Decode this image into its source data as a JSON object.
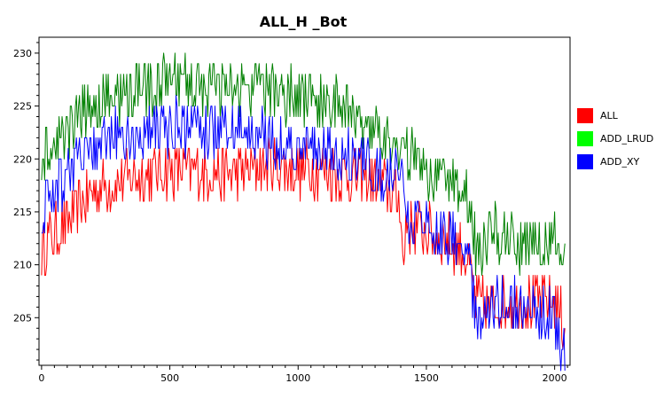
{
  "chart_data": {
    "type": "line",
    "title": "ALL_H _Bot",
    "xlabel": "",
    "ylabel": "",
    "xlim": [
      -10,
      2060
    ],
    "ylim": [
      200.5,
      231.5
    ],
    "xticks": [
      0,
      500,
      1000,
      1500,
      2000
    ],
    "yticks": [
      205,
      210,
      215,
      220,
      225,
      230
    ],
    "grid": false,
    "legend_position": "right",
    "series": [
      {
        "name": "ALL",
        "color": "#ff0000",
        "x": [
          0,
          100,
          200,
          300,
          400,
          500,
          600,
          700,
          800,
          900,
          1000,
          1100,
          1200,
          1300,
          1400,
          1410,
          1420,
          1500,
          1600,
          1650,
          1700,
          1750,
          1800,
          1900,
          2000,
          2040
        ],
        "y": [
          211.5,
          214,
          217,
          218,
          218.5,
          219,
          219,
          218.5,
          219,
          219.5,
          219,
          219,
          218.5,
          218,
          216,
          208.5,
          214,
          213,
          212,
          211,
          206,
          206,
          206.5,
          206.5,
          206.5,
          204
        ]
      },
      {
        "name": "ADD_LRUD",
        "color": "#008000",
        "x": [
          0,
          100,
          200,
          300,
          400,
          500,
          600,
          700,
          800,
          900,
          1000,
          1100,
          1200,
          1300,
          1400,
          1500,
          1600,
          1650,
          1700,
          1750,
          1800,
          1900,
          2000,
          2040
        ],
        "y": [
          219.5,
          222.5,
          225,
          226,
          226.5,
          227,
          227,
          226.5,
          226.5,
          226.5,
          226,
          225.5,
          224.5,
          223,
          221,
          219,
          218.5,
          217,
          211,
          213,
          212.5,
          212,
          212,
          210
        ]
      },
      {
        "name": "ADD_XY",
        "color": "#0000ff",
        "x": [
          0,
          100,
          200,
          300,
          400,
          500,
          600,
          700,
          800,
          900,
          1000,
          1100,
          1200,
          1300,
          1400,
          1420,
          1500,
          1600,
          1650,
          1700,
          1750,
          1800,
          1900,
          2000,
          2040
        ],
        "y": [
          215,
          219,
          221,
          222,
          222.5,
          223,
          223,
          222.5,
          222.5,
          222,
          221,
          220.5,
          220,
          219,
          218,
          214.5,
          213.5,
          213,
          211.5,
          204.5,
          206.5,
          206.5,
          206,
          205,
          201
        ]
      }
    ]
  }
}
